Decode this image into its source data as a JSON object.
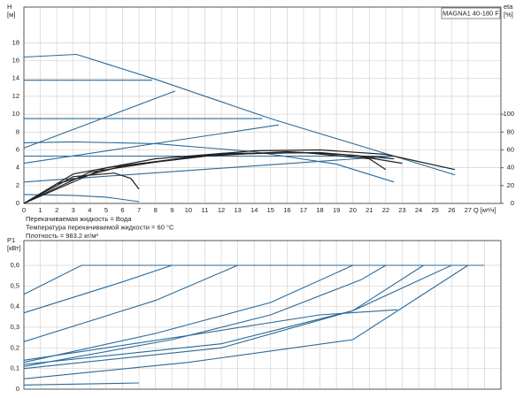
{
  "chart_data": [
    {
      "type": "line",
      "y_label": [
        "H",
        "[м]"
      ],
      "y2_label": [
        "eta",
        "[%]"
      ],
      "x_label": "Q [м³/ч]",
      "title": "MAGNA1 40-180 F",
      "notes": [
        "Перекачиваемая жидкость = Вода",
        "Температура перекачиваемой жидкости = 60 °C",
        "Плотность = 983.2 кг/м³"
      ],
      "xlim": [
        0,
        29
      ],
      "xticks": [
        0,
        1,
        2,
        3,
        4,
        5,
        6,
        7,
        8,
        9,
        10,
        11,
        12,
        13,
        14,
        15,
        16,
        17,
        18,
        19,
        20,
        21,
        22,
        23,
        24,
        25,
        26,
        27
      ],
      "x_tick_labels": true,
      "ylim": [
        0,
        22
      ],
      "yticks": [
        0,
        2,
        4,
        6,
        8,
        10,
        12,
        14,
        16,
        18
      ],
      "y2lim": [
        0,
        220
      ],
      "y2ticks": [
        0,
        20,
        40,
        60,
        80,
        100
      ],
      "grid": true,
      "series": [
        {
          "color": "#2a6a9a",
          "x": [
            0,
            3.2,
            8,
            15,
            22.5,
            26.2
          ],
          "values": [
            16.4,
            16.7,
            13.9,
            9.5,
            5.3,
            3.2
          ]
        },
        {
          "color": "#2a6a9a",
          "x": [
            0,
            7.8
          ],
          "values": [
            13.8,
            13.8
          ]
        },
        {
          "color": "#2a6a9a",
          "x": [
            0,
            9.2
          ],
          "values": [
            6.2,
            12.6
          ]
        },
        {
          "color": "#2a6a9a",
          "x": [
            0,
            14.5
          ],
          "values": [
            9.5,
            9.5
          ]
        },
        {
          "color": "#2a6a9a",
          "x": [
            0,
            15.5
          ],
          "values": [
            4.5,
            8.8
          ]
        },
        {
          "color": "#2a6a9a",
          "x": [
            0,
            3,
            8,
            14,
            19,
            22.5
          ],
          "values": [
            6.8,
            6.9,
            6.7,
            5.8,
            4.4,
            2.4
          ]
        },
        {
          "color": "#2a6a9a",
          "x": [
            0,
            22.5
          ],
          "values": [
            5.3,
            5.3
          ]
        },
        {
          "color": "#2a6a9a",
          "x": [
            0,
            22.5
          ],
          "values": [
            2.4,
            5.3
          ]
        },
        {
          "color": "#2a6a9a",
          "x": [
            0,
            3,
            5,
            7
          ],
          "values": [
            1.0,
            0.9,
            0.7,
            0.2
          ]
        },
        {
          "color": "#222222",
          "axis": "y2",
          "x": [
            0,
            3,
            8,
            14,
            18,
            22,
            26.2
          ],
          "values": [
            0,
            33,
            50,
            59,
            60,
            55,
            38
          ]
        },
        {
          "color": "#222222",
          "axis": "y2",
          "x": [
            0,
            3,
            5.5,
            6.5,
            7
          ],
          "values": [
            0,
            30,
            34,
            28,
            16
          ]
        },
        {
          "color": "#222222",
          "axis": "y2",
          "x": [
            0,
            4,
            10,
            16,
            20,
            23
          ],
          "values": [
            0,
            35,
            52,
            58,
            54,
            45
          ]
        },
        {
          "color": "#222222",
          "axis": "y2",
          "x": [
            0,
            5,
            12,
            18,
            22.5
          ],
          "values": [
            0,
            40,
            56,
            57,
            50
          ]
        },
        {
          "color": "#222222",
          "axis": "y2",
          "x": [
            0,
            2,
            6,
            12,
            17,
            21,
            22
          ],
          "values": [
            0,
            22,
            42,
            55,
            57,
            50,
            38
          ]
        }
      ]
    },
    {
      "type": "line",
      "y_label": [
        "P1",
        "[кВт]"
      ],
      "xlim": [
        0,
        29
      ],
      "xticks": [
        0,
        1,
        2,
        3,
        4,
        5,
        6,
        7,
        8,
        9,
        10,
        11,
        12,
        13,
        14,
        15,
        16,
        17,
        18,
        19,
        20,
        21,
        22,
        23,
        24,
        25,
        26,
        27,
        28
      ],
      "x_tick_labels": false,
      "ylim": [
        0,
        0.72
      ],
      "yticks": [
        {
          "value": 0,
          "label": "0"
        },
        {
          "value": 0.1,
          "label": "0,1"
        },
        {
          "value": 0.2,
          "label": "0,2"
        },
        {
          "value": 0.3,
          "label": "0,3"
        },
        {
          "value": 0.4,
          "label": "0,4"
        },
        {
          "value": 0.5,
          "label": "0,5"
        },
        {
          "value": 0.6,
          "label": "0,6"
        }
      ],
      "grid": true,
      "series": [
        {
          "color": "#2a6a9a",
          "x": [
            0,
            3.5,
            28
          ],
          "values": [
            0.46,
            0.6,
            0.6
          ]
        },
        {
          "color": "#2a6a9a",
          "x": [
            0,
            6,
            9
          ],
          "values": [
            0.37,
            0.52,
            0.6
          ]
        },
        {
          "color": "#2a6a9a",
          "x": [
            0,
            8,
            13
          ],
          "values": [
            0.23,
            0.43,
            0.6
          ]
        },
        {
          "color": "#2a6a9a",
          "x": [
            0,
            8,
            15,
            20
          ],
          "values": [
            0.13,
            0.27,
            0.42,
            0.6
          ]
        },
        {
          "color": "#2a6a9a",
          "x": [
            0,
            9,
            15,
            20.5,
            22
          ],
          "values": [
            0.11,
            0.24,
            0.36,
            0.53,
            0.6
          ]
        },
        {
          "color": "#2a6a9a",
          "x": [
            0,
            12,
            20,
            26
          ],
          "values": [
            0.1,
            0.2,
            0.38,
            0.6
          ]
        },
        {
          "color": "#2a6a9a",
          "x": [
            0,
            12,
            20,
            24.3
          ],
          "values": [
            0.12,
            0.22,
            0.38,
            0.6
          ]
        },
        {
          "color": "#2a6a9a",
          "x": [
            0,
            10,
            20,
            27
          ],
          "values": [
            0.05,
            0.13,
            0.24,
            0.6
          ]
        },
        {
          "color": "#2a6a9a",
          "x": [
            0,
            10,
            18,
            22.7
          ],
          "values": [
            0.14,
            0.26,
            0.36,
            0.385
          ]
        },
        {
          "color": "#2a6a9a",
          "x": [
            0,
            7
          ],
          "values": [
            0.02,
            0.03
          ]
        }
      ]
    }
  ]
}
